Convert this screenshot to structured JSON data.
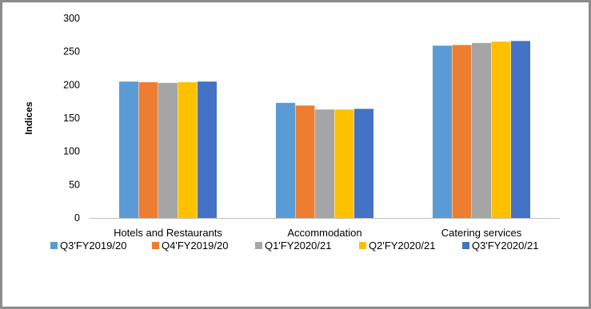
{
  "chart_data": {
    "type": "bar",
    "title": "",
    "xlabel": "",
    "ylabel": "Indices",
    "ylim": [
      0,
      300
    ],
    "yticks": [
      0,
      50,
      100,
      150,
      200,
      250,
      300
    ],
    "grid": false,
    "legend_position": "bottom",
    "categories": [
      "Hotels and Restaurants",
      "Accommodation",
      "Catering services"
    ],
    "series": [
      {
        "name": "Q3'FY2019/20",
        "color": "#5b9bd5",
        "values": [
          205,
          173,
          259
        ]
      },
      {
        "name": "Q4'FY2019/20",
        "color": "#ed7d31",
        "values": [
          204,
          169,
          260
        ]
      },
      {
        "name": "Q1'FY2020/21",
        "color": "#a5a5a5",
        "values": [
          203,
          163,
          263
        ]
      },
      {
        "name": "Q2'FY2020/21",
        "color": "#ffc000",
        "values": [
          204,
          163,
          265
        ]
      },
      {
        "name": "Q3'FY2020/21",
        "color": "#4472c4",
        "values": [
          205,
          164,
          266
        ]
      }
    ]
  }
}
